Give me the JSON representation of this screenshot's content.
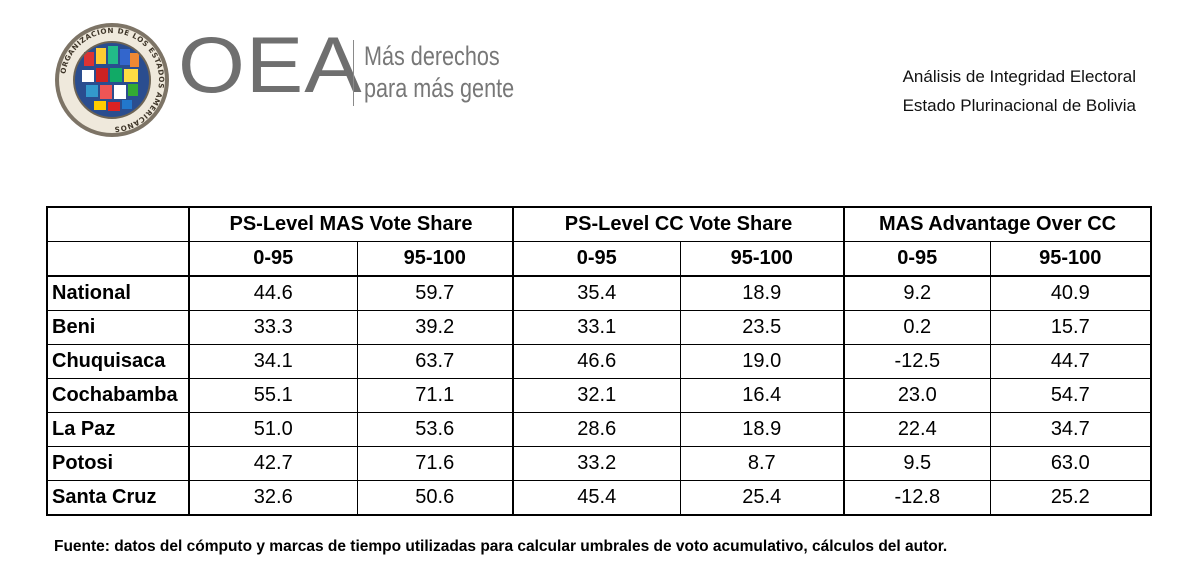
{
  "header": {
    "seal_text": "ORGANIZACION DE LOS ESTADOS AMERICANOS",
    "logo_text": "OEA",
    "tagline_line1": "Más derechos",
    "tagline_line2": "para más gente",
    "report_line1": "Análisis de Integridad Electoral",
    "report_line2": "Estado Plurinacional de Bolivia"
  },
  "table": {
    "groups": [
      "PS-Level MAS Vote Share",
      "PS-Level CC Vote Share",
      "MAS Advantage Over CC"
    ],
    "subcolumns": [
      "0-95",
      "95-100",
      "0-95",
      "95-100",
      "0-95",
      "95-100"
    ],
    "rows": [
      {
        "label": "National",
        "values": [
          "44.6",
          "59.7",
          "35.4",
          "18.9",
          "9.2",
          "40.9"
        ]
      },
      {
        "label": "Beni",
        "values": [
          "33.3",
          "39.2",
          "33.1",
          "23.5",
          "0.2",
          "15.7"
        ]
      },
      {
        "label": "Chuquisaca",
        "values": [
          "34.1",
          "63.7",
          "46.6",
          "19.0",
          "-12.5",
          "44.7"
        ]
      },
      {
        "label": "Cochabamba",
        "values": [
          "55.1",
          "71.1",
          "32.1",
          "16.4",
          "23.0",
          "54.7"
        ]
      },
      {
        "label": "La Paz",
        "values": [
          "51.0",
          "53.6",
          "28.6",
          "18.9",
          "22.4",
          "34.7"
        ]
      },
      {
        "label": "Potosi",
        "values": [
          "42.7",
          "71.6",
          "33.2",
          "8.7",
          "9.5",
          "63.0"
        ]
      },
      {
        "label": "Santa Cruz",
        "values": [
          "32.6",
          "50.6",
          "45.4",
          "25.4",
          "-12.8",
          "25.2"
        ]
      }
    ]
  },
  "source_note": "Fuente: datos del cómputo y marcas de tiempo utilizadas para calcular umbrales de voto acumulativo, cálculos del autor."
}
